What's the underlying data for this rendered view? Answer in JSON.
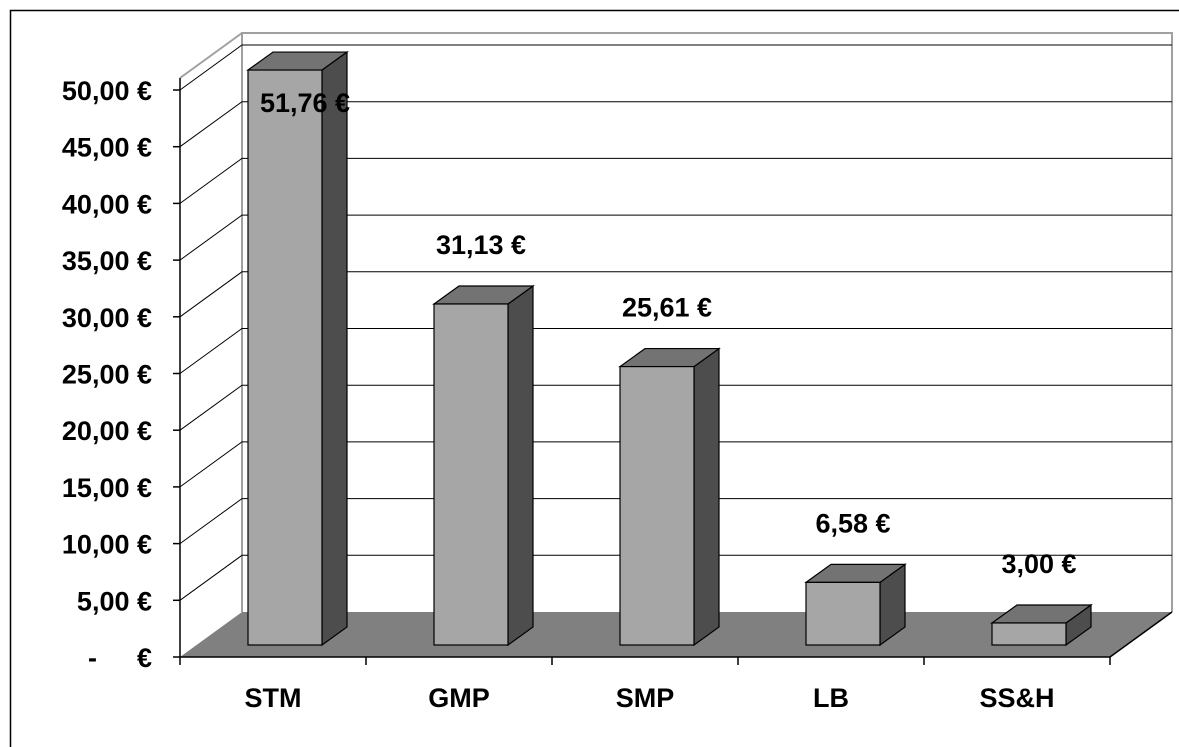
{
  "chart_data": {
    "type": "bar",
    "style": "3d-column",
    "categories": [
      "STM",
      "GMP",
      "SMP",
      "LB",
      "SS&H"
    ],
    "values": [
      51.76,
      31.13,
      25.61,
      6.58,
      3.0
    ],
    "data_labels": [
      "51,76 €",
      "31,13 €",
      "25,61 €",
      "6,58 €",
      "3,00 €"
    ],
    "y_ticks": [
      0,
      5,
      10,
      15,
      20,
      25,
      30,
      35,
      40,
      45,
      50
    ],
    "y_tick_labels": [
      "-   €",
      "5,00 €",
      "10,00 €",
      "15,00 €",
      "20,00 €",
      "25,00 €",
      "30,00 €",
      "35,00 €",
      "40,00 €",
      "45,00 €",
      "50,00 €"
    ],
    "ylim": [
      0,
      50
    ],
    "title": "",
    "xlabel": "",
    "ylabel": "",
    "grid": true,
    "legend": "none",
    "colors": {
      "bar_front": "#a6a6a6",
      "bar_side": "#4d4d4d",
      "bar_top": "#737373",
      "floor": "#808080",
      "grid": "#000000",
      "wall_edge": "#a0a0a0"
    }
  }
}
